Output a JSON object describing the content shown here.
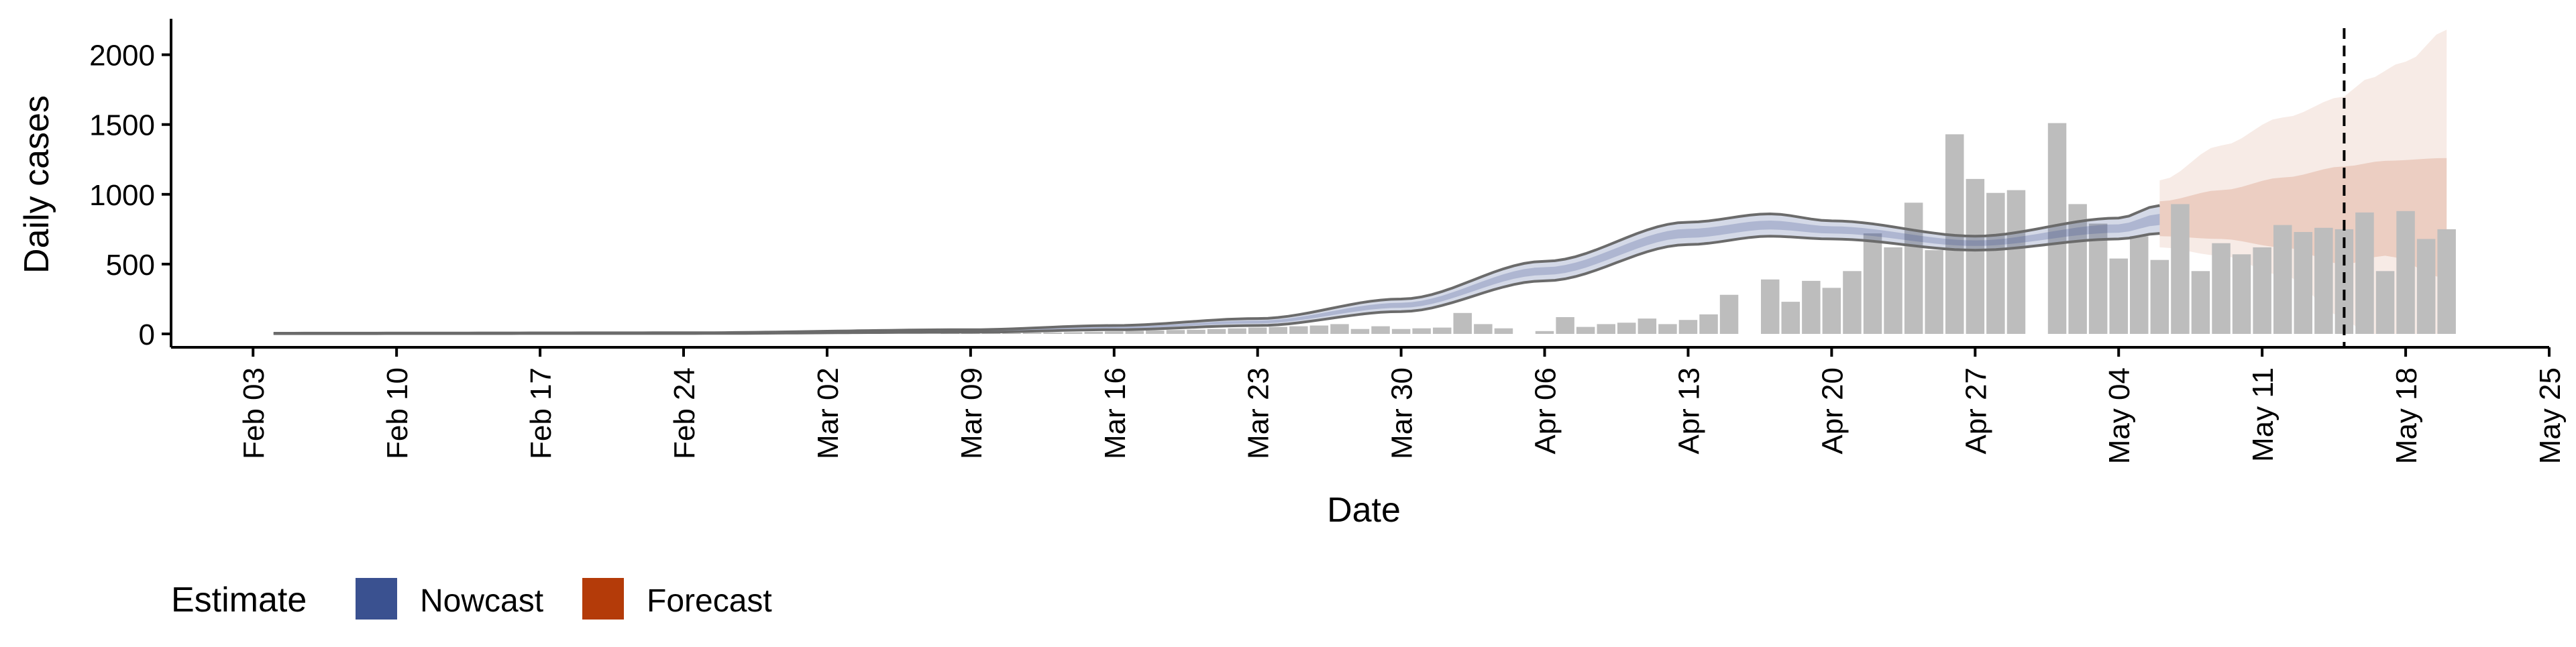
{
  "chart_data": {
    "type": "bar",
    "xlabel": "Date",
    "ylabel": "Daily cases",
    "x_axis_start": "2020-02-04",
    "xlim": [
      "2020-01-30",
      "2020-05-25"
    ],
    "ylim": [
      0,
      2200
    ],
    "y_ticks": [
      0,
      500,
      1000,
      1500,
      2000
    ],
    "x_ticks": [
      {
        "date": "2020-02-03",
        "label": "Feb 03"
      },
      {
        "date": "2020-02-10",
        "label": "Feb 10"
      },
      {
        "date": "2020-02-17",
        "label": "Feb 17"
      },
      {
        "date": "2020-02-24",
        "label": "Feb 24"
      },
      {
        "date": "2020-03-02",
        "label": "Mar 02"
      },
      {
        "date": "2020-03-09",
        "label": "Mar 09"
      },
      {
        "date": "2020-03-16",
        "label": "Mar 16"
      },
      {
        "date": "2020-03-23",
        "label": "Mar 23"
      },
      {
        "date": "2020-03-30",
        "label": "Mar 30"
      },
      {
        "date": "2020-04-06",
        "label": "Apr 06"
      },
      {
        "date": "2020-04-13",
        "label": "Apr 13"
      },
      {
        "date": "2020-04-20",
        "label": "Apr 20"
      },
      {
        "date": "2020-04-27",
        "label": "Apr 27"
      },
      {
        "date": "2020-05-04",
        "label": "May 04"
      },
      {
        "date": "2020-05-11",
        "label": "May 11"
      },
      {
        "date": "2020-05-18",
        "label": "May 18"
      },
      {
        "date": "2020-05-25",
        "label": "May 25"
      }
    ],
    "bars": {
      "start_date": "2020-03-08",
      "color": "#bdbdbd",
      "values": [
        3,
        4,
        5,
        6,
        8,
        10,
        12,
        15,
        18,
        22,
        25,
        28,
        30,
        35,
        40,
        45,
        50,
        55,
        60,
        70,
        35,
        55,
        35,
        40,
        45,
        150,
        70,
        40,
        0,
        20,
        120,
        50,
        70,
        80,
        110,
        70,
        100,
        140,
        280,
        0,
        390,
        230,
        380,
        330,
        450,
        720,
        620,
        940,
        600,
        1430,
        1110,
        1010,
        1030,
        0,
        1510,
        930,
        790,
        540,
        700,
        530,
        930,
        450,
        650,
        570,
        620,
        780,
        730,
        760,
        750,
        870,
        450,
        880,
        680,
        750
      ]
    },
    "nowcast": {
      "name": "Nowcast",
      "color": "#3a5190",
      "x_start": "2020-02-04",
      "x_end": "2020-05-06",
      "knots": [
        {
          "x": "2020-02-04",
          "lo": 2,
          "hi": 5
        },
        {
          "x": "2020-02-24",
          "lo": 3,
          "hi": 8
        },
        {
          "x": "2020-03-09",
          "lo": 12,
          "hi": 30
        },
        {
          "x": "2020-03-16",
          "lo": 30,
          "hi": 60
        },
        {
          "x": "2020-03-23",
          "lo": 60,
          "hi": 110
        },
        {
          "x": "2020-03-30",
          "lo": 160,
          "hi": 250
        },
        {
          "x": "2020-04-06",
          "lo": 380,
          "hi": 520
        },
        {
          "x": "2020-04-13",
          "lo": 640,
          "hi": 800
        },
        {
          "x": "2020-04-17",
          "lo": 700,
          "hi": 860
        },
        {
          "x": "2020-04-20",
          "lo": 680,
          "hi": 810
        },
        {
          "x": "2020-04-27",
          "lo": 600,
          "hi": 700
        },
        {
          "x": "2020-05-04",
          "lo": 680,
          "hi": 830
        },
        {
          "x": "2020-05-06",
          "lo": 720,
          "hi": 920
        }
      ]
    },
    "forecast": {
      "name": "Forecast",
      "color": "#b43b09",
      "x_start": "2020-05-06",
      "x_end": "2020-05-20",
      "outer": [
        {
          "x": "2020-05-06",
          "lo": 620,
          "hi": 1100
        },
        {
          "x": "2020-05-09",
          "lo": 560,
          "hi": 1350
        },
        {
          "x": "2020-05-12",
          "lo": 420,
          "hi": 1550
        },
        {
          "x": "2020-05-15",
          "lo": 120,
          "hi": 1700
        },
        {
          "x": "2020-05-16",
          "lo": 0,
          "hi": 1820
        },
        {
          "x": "2020-05-18",
          "lo": 0,
          "hi": 1950
        },
        {
          "x": "2020-05-20",
          "lo": 0,
          "hi": 2180
        }
      ],
      "inner": [
        {
          "x": "2020-05-06",
          "lo": 700,
          "hi": 950
        },
        {
          "x": "2020-05-09",
          "lo": 680,
          "hi": 1030
        },
        {
          "x": "2020-05-12",
          "lo": 620,
          "hi": 1120
        },
        {
          "x": "2020-05-15",
          "lo": 500,
          "hi": 1200
        },
        {
          "x": "2020-05-17",
          "lo": 560,
          "hi": 1240
        },
        {
          "x": "2020-05-20",
          "lo": 400,
          "hi": 1260
        }
      ]
    },
    "vline": {
      "date": "2020-05-15",
      "style": "dashed"
    },
    "legend": {
      "title": "Estimate",
      "placement": "bottom-left",
      "items": [
        {
          "label": "Nowcast",
          "color": "#3a5190"
        },
        {
          "label": "Forecast",
          "color": "#b43b09"
        }
      ]
    }
  }
}
